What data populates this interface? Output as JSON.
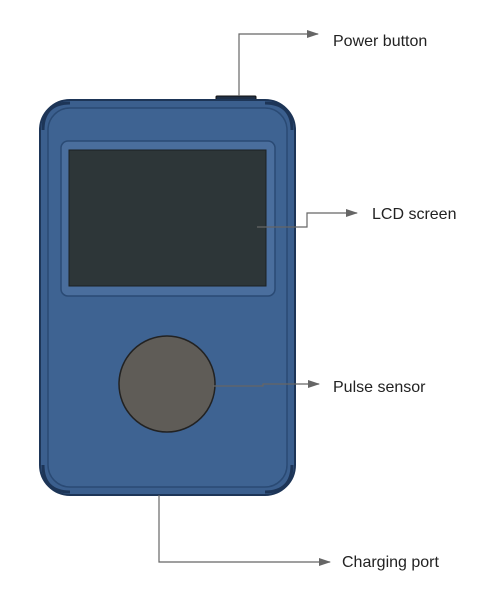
{
  "diagram": {
    "labels": {
      "power_button": "Power button",
      "lcd_screen": "LCD screen",
      "pulse_sensor": "Pulse sensor",
      "charging_port": "Charging port"
    },
    "colors": {
      "body": "#3b5f8e",
      "body_edge": "#1d3557",
      "inner_panel": "#4a6e9d",
      "screen": "#2d3638",
      "sensor": "#5f5c57",
      "leader_line": "#666666",
      "text": "#222222"
    }
  }
}
